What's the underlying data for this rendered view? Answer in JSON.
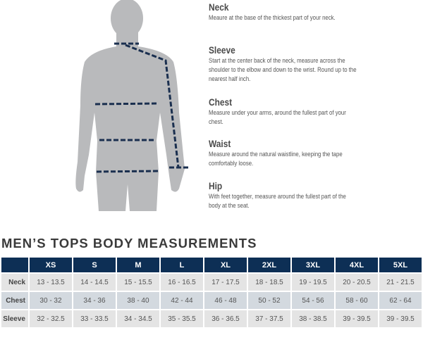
{
  "guide": [
    {
      "title": "Neck",
      "text": "Meaure at the base of the thickest part of your neck."
    },
    {
      "title": "Sleeve",
      "text": "Start at the center back of the neck, measure across the shoulder to the elbow and down to the wrist. Round up to the nearest half inch."
    },
    {
      "title": "Chest",
      "text": "Measure under your arms, around the fullest part of your chest."
    },
    {
      "title": "Waist",
      "text": "Measure around the natural waistline, keeping the tape comfortably loose."
    },
    {
      "title": "Hip",
      "text": "With feet together, measure around the fullest part of the body at the seat."
    }
  ],
  "table_title": "MEN’S TOPS BODY MEASUREMENTS",
  "colors": {
    "header": "#0d2f55",
    "tape": "#1a2f4f",
    "body": "#b9babc"
  },
  "table": {
    "sizes": [
      "XS",
      "S",
      "M",
      "L",
      "XL",
      "2XL",
      "3XL",
      "4XL",
      "5XL"
    ],
    "rows": [
      {
        "label": "Neck",
        "values": [
          "13 - 13.5",
          "14 - 14.5",
          "15 - 15.5",
          "16 - 16.5",
          "17 - 17.5",
          "18 - 18.5",
          "19 - 19.5",
          "20 - 20.5",
          "21 - 21.5"
        ]
      },
      {
        "label": "Chest",
        "values": [
          "30 - 32",
          "34 - 36",
          "38 - 40",
          "42 - 44",
          "46 - 48",
          "50 - 52",
          "54 - 56",
          "58 - 60",
          "62 - 64"
        ]
      },
      {
        "label": "Sleeve",
        "values": [
          "32 - 32.5",
          "33 - 33.5",
          "34 - 34.5",
          "35 - 35.5",
          "36 - 36.5",
          "37 - 37.5",
          "38 - 38.5",
          "39 - 39.5",
          "39 - 39.5"
        ]
      }
    ]
  }
}
